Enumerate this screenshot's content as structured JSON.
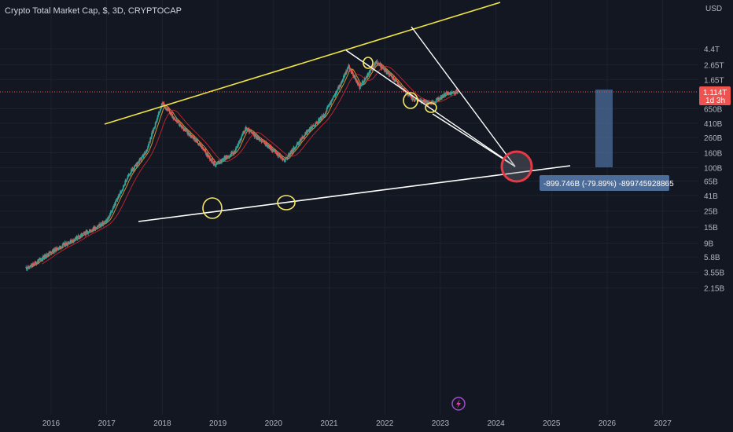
{
  "header": {
    "title": "Crypto Total Market Cap, $, 3D, CRYPTOCAP"
  },
  "y_axis": {
    "unit_label": "USD",
    "ticks": [
      "4.4T",
      "2.65T",
      "1.65T",
      "650B",
      "410B",
      "260B",
      "160B",
      "100B",
      "65B",
      "41B",
      "25B",
      "15B",
      "9B",
      "5.8B",
      "3.55B",
      "2.15B"
    ]
  },
  "x_axis": {
    "ticks": [
      "2016",
      "2017",
      "2018",
      "2019",
      "2020",
      "2021",
      "2022",
      "2023",
      "2024",
      "2025",
      "2026",
      "2027"
    ]
  },
  "price_tag": {
    "value": "1.114T",
    "countdown": "1d 3h"
  },
  "measure_label": "-899.746B (-79.89%) -899745928865",
  "colors": {
    "background": "#131722",
    "up": "#26a69a",
    "down": "#ef5350",
    "trendline_top": "#f0e442",
    "trendline_white": "#ffffff",
    "circle_yellow": "#f5e663",
    "target_red": "#e53945",
    "measure_box": "#4c6c9a",
    "ma_fast": "#d6902f",
    "ma_slow": "#b8232f"
  },
  "chart_data": {
    "type": "candlestick",
    "title": "Crypto Total Market Cap, $, 3D, CRYPTOCAP",
    "x_range": [
      2015.5,
      2027.3
    ],
    "ylim": [
      2000000000,
      5000000000000
    ],
    "y_scale": "log",
    "grid": true,
    "last_value": 1114000000000,
    "price_path_approx": [
      {
        "x": 2015.6,
        "y": 4100000000
      },
      {
        "x": 2016.0,
        "y": 6800000000
      },
      {
        "x": 2016.5,
        "y": 11000000000
      },
      {
        "x": 2017.0,
        "y": 18000000000
      },
      {
        "x": 2017.4,
        "y": 80000000000
      },
      {
        "x": 2017.7,
        "y": 160000000000
      },
      {
        "x": 2018.0,
        "y": 780000000000
      },
      {
        "x": 2018.3,
        "y": 400000000000
      },
      {
        "x": 2018.6,
        "y": 240000000000
      },
      {
        "x": 2018.95,
        "y": 110000000000
      },
      {
        "x": 2019.3,
        "y": 165000000000
      },
      {
        "x": 2019.5,
        "y": 350000000000
      },
      {
        "x": 2019.9,
        "y": 200000000000
      },
      {
        "x": 2020.2,
        "y": 125000000000
      },
      {
        "x": 2020.6,
        "y": 310000000000
      },
      {
        "x": 2020.9,
        "y": 520000000000
      },
      {
        "x": 2021.2,
        "y": 1400000000000
      },
      {
        "x": 2021.35,
        "y": 2500000000000
      },
      {
        "x": 2021.55,
        "y": 1300000000000
      },
      {
        "x": 2021.85,
        "y": 2900000000000
      },
      {
        "x": 2022.1,
        "y": 1900000000000
      },
      {
        "x": 2022.5,
        "y": 880000000000
      },
      {
        "x": 2022.85,
        "y": 780000000000
      },
      {
        "x": 2023.1,
        "y": 1050000000000
      },
      {
        "x": 2023.3,
        "y": 1114000000000
      }
    ]
  }
}
